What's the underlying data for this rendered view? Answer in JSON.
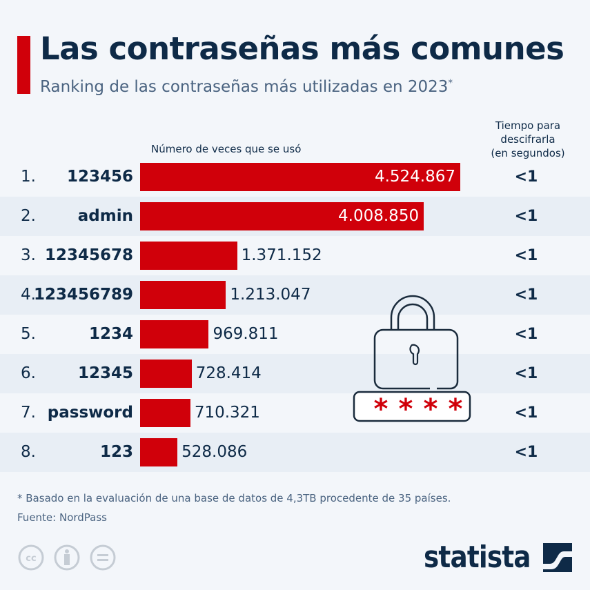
{
  "header": {
    "title": "Las contraseñas más comunes",
    "subtitle": "Ranking de las contraseñas más utilizadas en 2023",
    "subtitle_mark": "*"
  },
  "chart_data": {
    "type": "bar",
    "orientation": "horizontal",
    "value_header": "Número de veces que se usó",
    "time_header": [
      "Tiempo para",
      "descifrarla",
      "(en segundos)"
    ],
    "ranks": [
      "1.",
      "2.",
      "3.",
      "4.",
      "5.",
      "6.",
      "7.",
      "8."
    ],
    "categories": [
      "123456",
      "admin",
      "12345678",
      "123456789",
      "1234",
      "12345",
      "password",
      "123"
    ],
    "values": [
      4524867,
      4008850,
      1371152,
      1213047,
      969811,
      728414,
      710321,
      528086
    ],
    "value_labels": [
      "4.524.867",
      "4.008.850",
      "1.371.152",
      "1.213.047",
      "969.811",
      "728.414",
      "710.321",
      "528.086"
    ],
    "crack_time": [
      "<1",
      "<1",
      "<1",
      "<1",
      "<1",
      "<1",
      "<1",
      "<1"
    ],
    "bar_color": "#d0000a"
  },
  "illustration": {
    "icon": "padlock-with-password-icon",
    "masked_text": "****"
  },
  "footer": {
    "note": "* Basado en la evaluación de una base de datos de 4,3TB procedente de 35 países.",
    "source": "Fuente: NordPass",
    "logo": "statista",
    "license_icons": [
      "cc-icon",
      "attribution-icon",
      "no-derivatives-icon"
    ]
  },
  "colors": {
    "accent": "#d0000a",
    "text": "#0e2a47",
    "background": "#f3f6fa",
    "alt_row": "#e8eef5"
  }
}
